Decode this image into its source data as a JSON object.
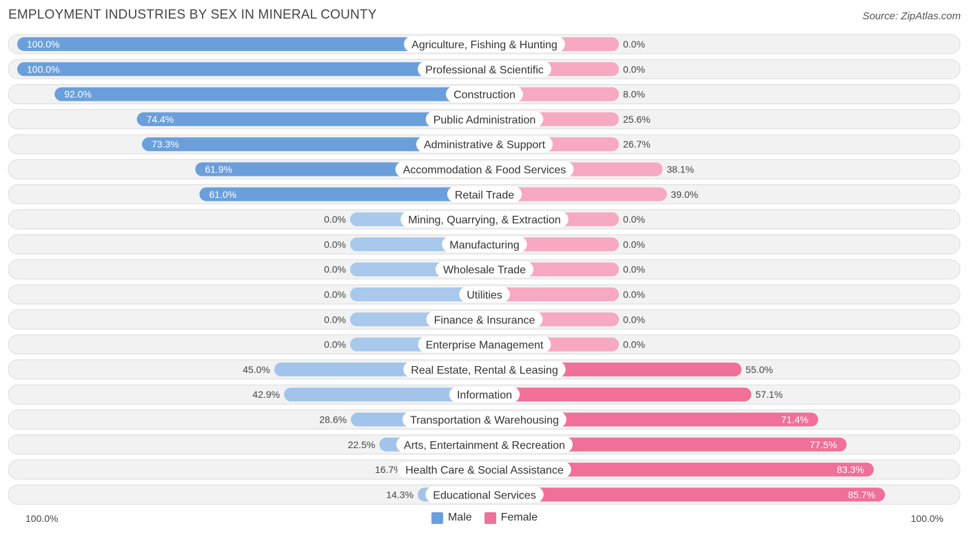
{
  "title": "EMPLOYMENT INDUSTRIES BY SEX IN MINERAL COUNTY",
  "source": "Source: ZipAtlas.com",
  "colors": {
    "male": "#6a9fdc",
    "male_light": "#a8c8ec",
    "female": "#f07098",
    "female_light": "#f6a9c0"
  },
  "axis": {
    "left_label": "100.0%",
    "right_label": "100.0%"
  },
  "legend": {
    "male": "Male",
    "female": "Female"
  },
  "chart_data": {
    "type": "bar",
    "orientation": "horizontal-diverging",
    "title": "EMPLOYMENT INDUSTRIES BY SEX IN MINERAL COUNTY",
    "xlim": [
      -100,
      100
    ],
    "categories": [
      "Agriculture, Fishing & Hunting",
      "Professional & Scientific",
      "Construction",
      "Public Administration",
      "Administrative & Support",
      "Accommodation & Food Services",
      "Retail Trade",
      "Mining, Quarrying, & Extraction",
      "Manufacturing",
      "Wholesale Trade",
      "Utilities",
      "Finance & Insurance",
      "Enterprise Management",
      "Real Estate, Rental & Leasing",
      "Information",
      "Transportation & Warehousing",
      "Arts, Entertainment & Recreation",
      "Health Care & Social Assistance",
      "Educational Services"
    ],
    "series": [
      {
        "name": "Male",
        "values": [
          100.0,
          100.0,
          92.0,
          74.4,
          73.3,
          61.9,
          61.0,
          0.0,
          0.0,
          0.0,
          0.0,
          0.0,
          0.0,
          45.0,
          42.9,
          28.6,
          22.5,
          16.7,
          14.3
        ],
        "labels": [
          "100.0%",
          "100.0%",
          "92.0%",
          "74.4%",
          "73.3%",
          "61.9%",
          "61.0%",
          "0.0%",
          "0.0%",
          "0.0%",
          "0.0%",
          "0.0%",
          "0.0%",
          "45.0%",
          "42.9%",
          "28.6%",
          "22.5%",
          "16.7%",
          "14.3%"
        ]
      },
      {
        "name": "Female",
        "values": [
          0.0,
          0.0,
          8.0,
          25.6,
          26.7,
          38.1,
          39.0,
          0.0,
          0.0,
          0.0,
          0.0,
          0.0,
          0.0,
          55.0,
          57.1,
          71.4,
          77.5,
          83.3,
          85.7
        ],
        "labels": [
          "0.0%",
          "0.0%",
          "8.0%",
          "25.6%",
          "26.7%",
          "38.1%",
          "39.0%",
          "0.0%",
          "0.0%",
          "0.0%",
          "0.0%",
          "0.0%",
          "0.0%",
          "55.0%",
          "57.1%",
          "71.4%",
          "77.5%",
          "83.3%",
          "85.7%"
        ]
      }
    ],
    "legend_position": "bottom-center"
  }
}
